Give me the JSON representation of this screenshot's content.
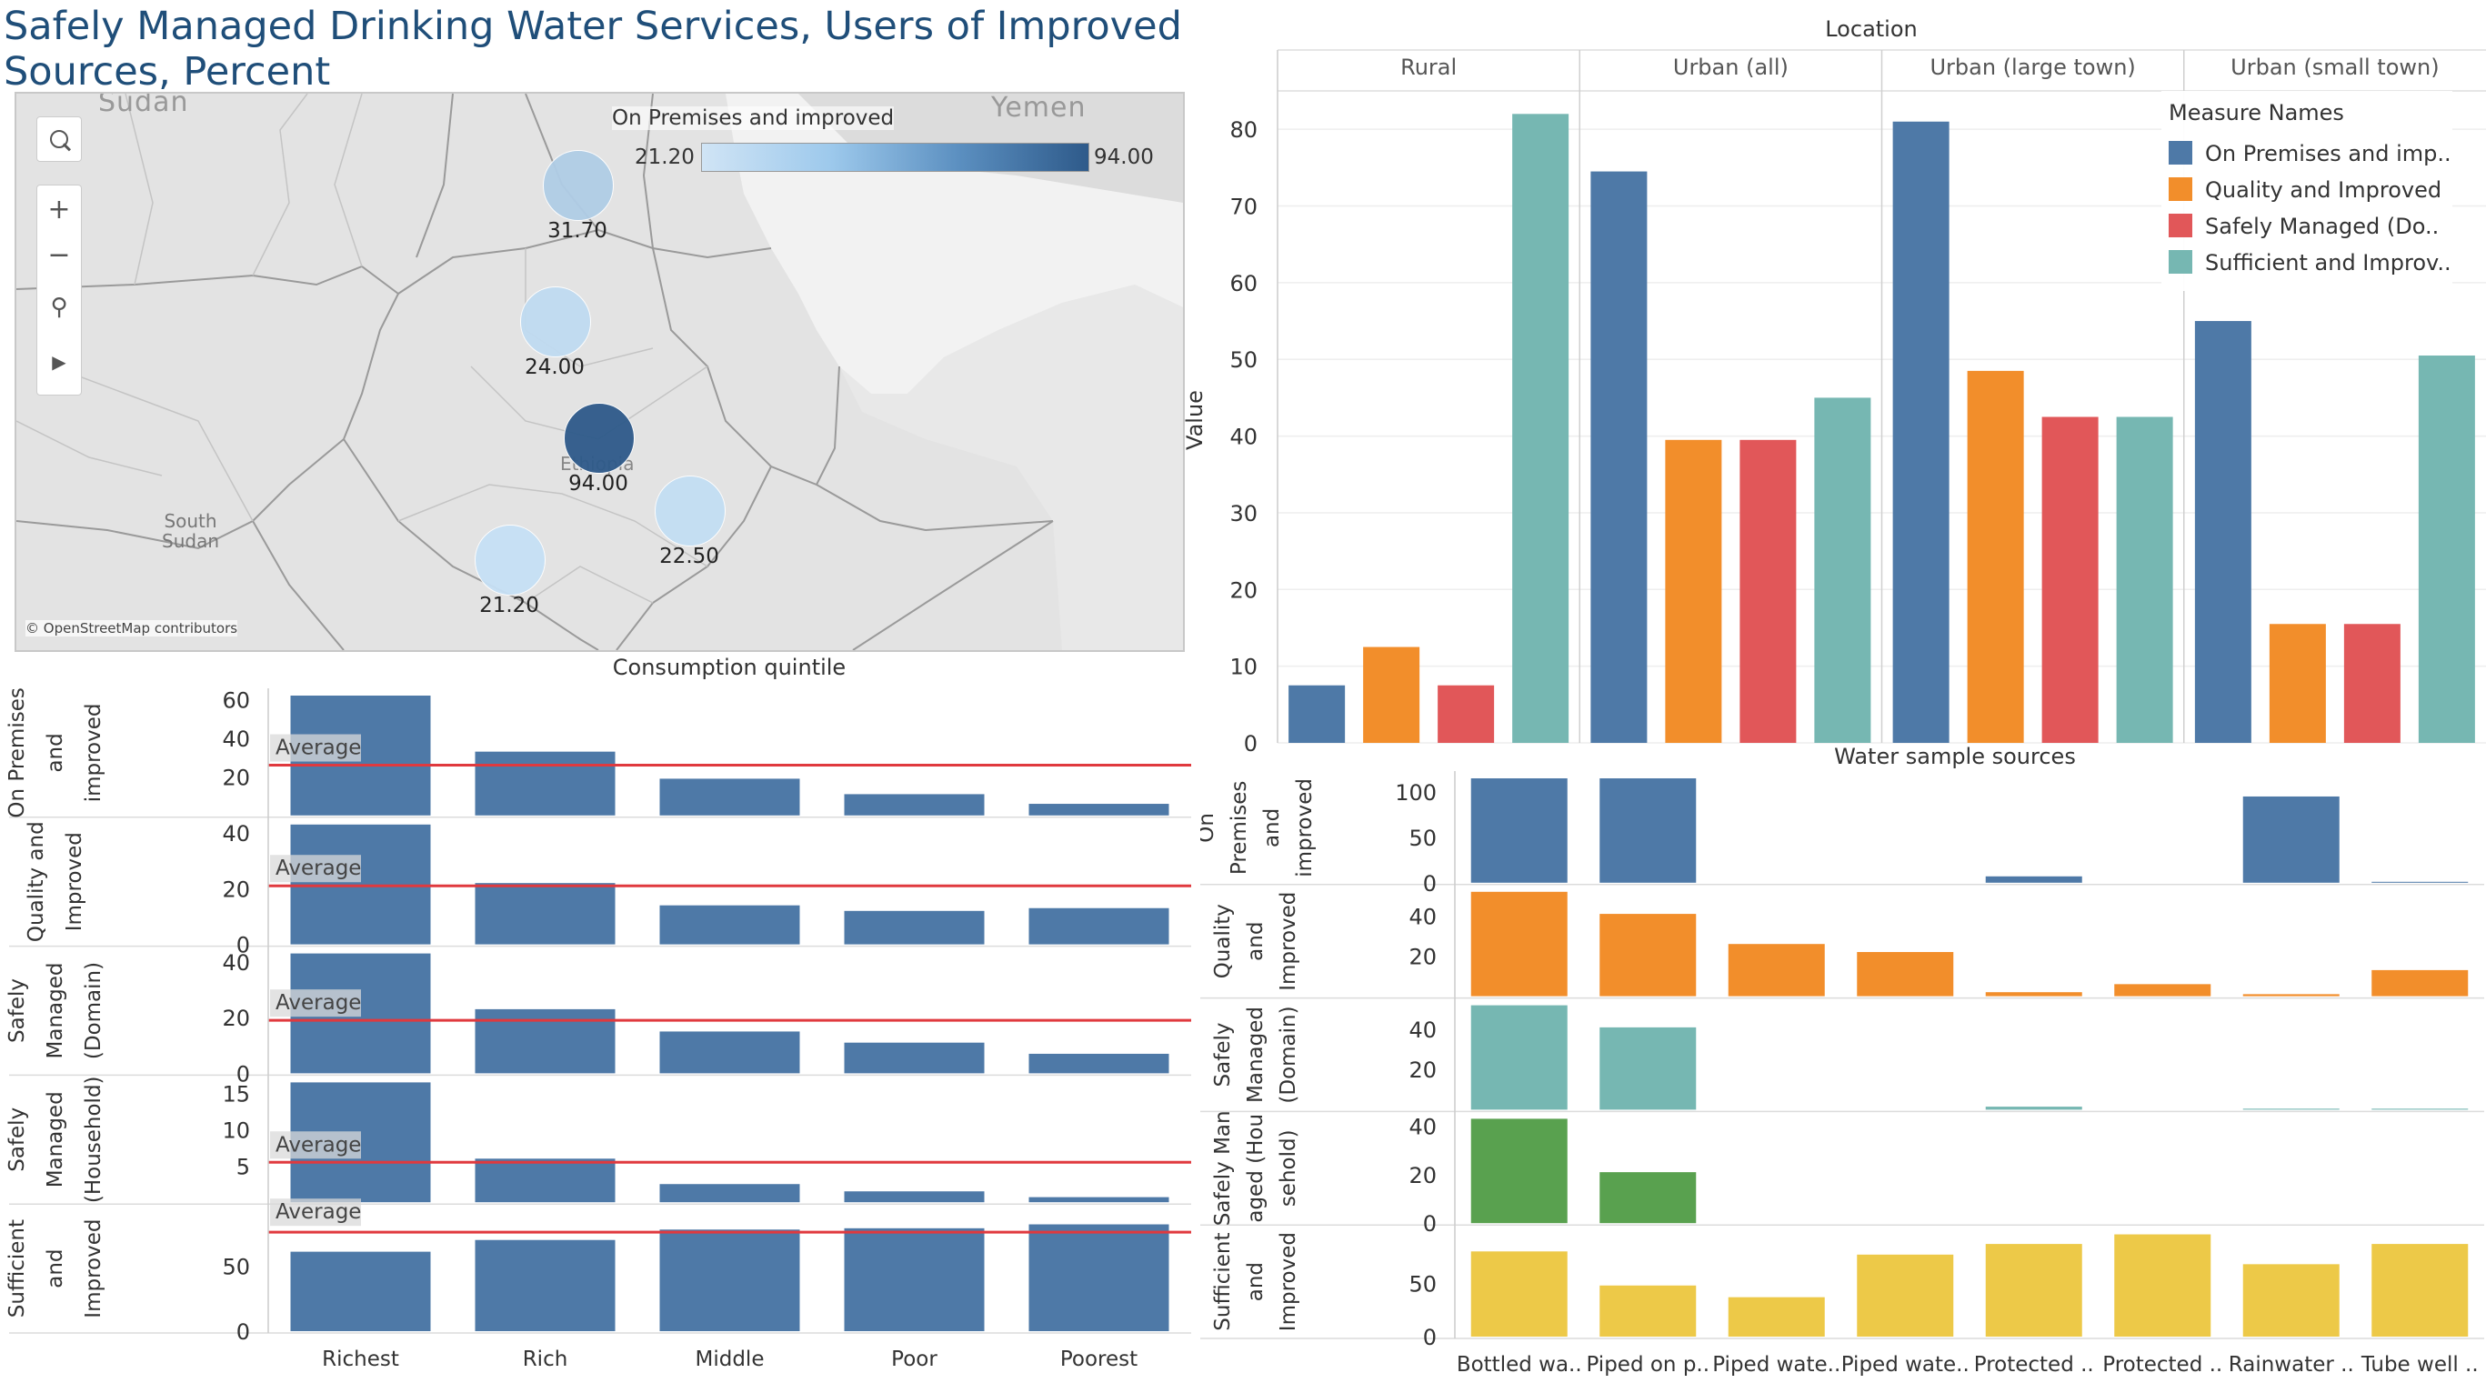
{
  "title": "Safely Managed Drinking Water Services, Users of Improved Sources, Percent",
  "map": {
    "legend_title": "On Premises and improved",
    "legend_min": "21.20",
    "legend_max": "94.00",
    "attribution": "© OpenStreetMap contributors",
    "place_labels": {
      "sudan": "Sudan",
      "yemen": "Yemen",
      "south_sudan_1": "South",
      "south_sudan_2": "Sudan",
      "ethiopia": "Ethiopia"
    },
    "points": [
      {
        "label": "31.70",
        "value": 31.7
      },
      {
        "label": "24.00",
        "value": 24.0
      },
      {
        "label": "94.00",
        "value": 94.0
      },
      {
        "label": "22.50",
        "value": 22.5
      },
      {
        "label": "21.20",
        "value": 21.2
      }
    ]
  },
  "colors": {
    "blue": "#4e79a7",
    "orange": "#f28e2b",
    "red": "#e15759",
    "teal": "#76b7b2",
    "green": "#59a14f",
    "yellow": "#edc948",
    "avg_line": "#e0393e"
  },
  "chart_data": [
    {
      "type": "bar",
      "title": "Location",
      "ylabel": "Value",
      "ylim": [
        0,
        85
      ],
      "yticks": [
        0,
        10,
        20,
        30,
        40,
        50,
        60,
        70,
        80
      ],
      "categories": [
        "Rural",
        "Urban (all)",
        "Urban (large town)",
        "Urban (small town)"
      ],
      "legend_title": "Measure Names",
      "legend_position": "top-right",
      "series": [
        {
          "name": "On Premises and imp..",
          "values": [
            7.5,
            74.5,
            81,
            55
          ]
        },
        {
          "name": "Quality and Improved",
          "values": [
            12.5,
            39.5,
            48.5,
            15.5
          ]
        },
        {
          "name": "Safely Managed (Do..",
          "values": [
            7.5,
            39.5,
            42.5,
            15.5
          ]
        },
        {
          "name": "Sufficient and Improv..",
          "values": [
            82,
            45,
            42.5,
            50.5
          ]
        }
      ]
    },
    {
      "type": "bar",
      "title": "Consumption quintile",
      "categories": [
        "Richest",
        "Rich",
        "Middle",
        "Poor",
        "Poorest"
      ],
      "reference_line_label": "Average",
      "series": [
        {
          "name": "On Premises and improved",
          "values": [
            62,
            33,
            19,
            11,
            6
          ],
          "ylim": [
            0,
            62
          ],
          "yticks": [
            20,
            40,
            60
          ],
          "average": 26
        },
        {
          "name": "Quality and Improved",
          "values": [
            43,
            22,
            14,
            12,
            13
          ],
          "ylim": [
            0,
            43
          ],
          "yticks": [
            0,
            20,
            40
          ],
          "average": 21
        },
        {
          "name": "Safely Managed (Domain)",
          "values": [
            43,
            23,
            15,
            11,
            7
          ],
          "ylim": [
            0,
            43
          ],
          "yticks": [
            0,
            20,
            40
          ],
          "average": 19
        },
        {
          "name": "Safely Managed (Household)",
          "values": [
            16.5,
            6,
            2.5,
            1.5,
            0.7
          ],
          "ylim": [
            0,
            16.5
          ],
          "yticks": [
            5,
            10,
            15
          ],
          "average": 5.5
        },
        {
          "name": "Sufficient and Improved",
          "values": [
            61,
            70,
            78,
            79,
            82
          ],
          "ylim": [
            0,
            92
          ],
          "yticks": [
            0,
            50
          ],
          "average": 76
        }
      ]
    },
    {
      "type": "bar",
      "title": "Water sample sources",
      "categories": [
        "Bottled wa..",
        "Piped on p..",
        "Piped wate..",
        "Piped wate..",
        "Protected ..",
        "Protected ..",
        "Rainwater ..",
        "Tube well .."
      ],
      "series": [
        {
          "name": "On Premises and improved",
          "values": [
            115,
            115,
            0,
            0,
            7,
            0,
            95,
            1
          ],
          "ylim": [
            0,
            115
          ],
          "yticks": [
            0,
            50,
            100
          ]
        },
        {
          "name": "Quality and Improved",
          "values": [
            52,
            41,
            26,
            22,
            2,
            6,
            1,
            13
          ],
          "ylim": [
            0,
            52
          ],
          "yticks": [
            20,
            40
          ]
        },
        {
          "name": "Safely Managed (Domain)",
          "values": [
            52,
            41,
            0,
            0,
            1.5,
            0,
            0.5,
            0.5
          ],
          "ylim": [
            0,
            52
          ],
          "yticks": [
            20,
            40
          ]
        },
        {
          "name": "Safely Managed (Household)",
          "values": [
            43,
            21,
            0,
            0,
            0,
            0,
            0,
            0
          ],
          "ylim": [
            0,
            43
          ],
          "yticks": [
            0,
            20,
            40
          ]
        },
        {
          "name": "Sufficient and Improved",
          "values": [
            80,
            48,
            37,
            77,
            87,
            96,
            68,
            87
          ],
          "ylim": [
            0,
            98
          ],
          "yticks": [
            0,
            50
          ]
        }
      ]
    }
  ],
  "row_labels": {
    "consumption": [
      [
        "On Premises",
        "and",
        "improved"
      ],
      [
        "Quality and",
        "Improved"
      ],
      [
        "Safely",
        "Managed",
        "(Domain)"
      ],
      [
        "Safely",
        "Managed",
        "(Household)"
      ],
      [
        "Sufficient",
        "and",
        "Improved"
      ]
    ],
    "water": [
      [
        "On",
        "Premises",
        "and",
        "improved"
      ],
      [
        "Quality",
        "and",
        "Improved"
      ],
      [
        "Safely",
        "Managed",
        "(Domain)"
      ],
      [
        "Safely Man",
        "aged (Hou",
        "sehold)"
      ],
      [
        "Sufficient",
        "and",
        "Improved"
      ]
    ]
  }
}
